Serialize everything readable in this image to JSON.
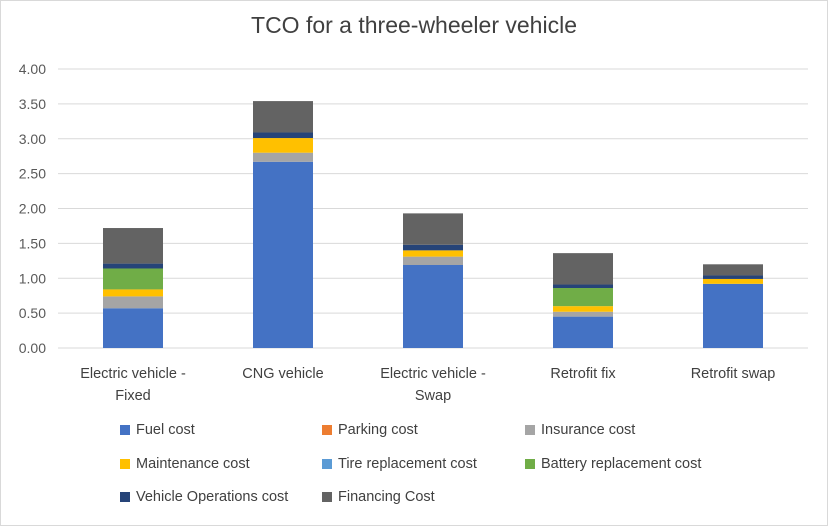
{
  "chart_data": {
    "type": "bar",
    "stacked": true,
    "title": "TCO for a three-wheeler vehicle",
    "xlabel": "",
    "ylabel": "",
    "ylim": [
      0,
      4
    ],
    "yticks": [
      "0.00",
      "0.50",
      "1.00",
      "1.50",
      "2.00",
      "2.50",
      "3.00",
      "3.50",
      "4.00"
    ],
    "grid": true,
    "legend_position": "bottom",
    "categories": [
      [
        "Electric vehicle -",
        "Fixed"
      ],
      [
        "CNG vehicle"
      ],
      [
        "Electric vehicle -",
        "Swap"
      ],
      [
        "Retrofit fix"
      ],
      [
        "Retrofit swap"
      ]
    ],
    "series": [
      {
        "name": "Fuel cost",
        "color": "#4472C4",
        "values": [
          0.57,
          2.67,
          1.19,
          0.45,
          0.92
        ]
      },
      {
        "name": "Parking cost",
        "color": "#ED7D31",
        "values": [
          0,
          0,
          0,
          0,
          0
        ]
      },
      {
        "name": "Insurance cost",
        "color": "#A5A5A5",
        "values": [
          0.17,
          0.13,
          0.12,
          0.07,
          0
        ]
      },
      {
        "name": "Maintenance cost",
        "color": "#FFC000",
        "values": [
          0.1,
          0.21,
          0.09,
          0.08,
          0.07
        ]
      },
      {
        "name": "Tire replacement cost",
        "color": "#5B9BD5",
        "values": [
          0,
          0,
          0,
          0,
          0
        ]
      },
      {
        "name": "Battery replacement cost",
        "color": "#70AD47",
        "values": [
          0.3,
          0,
          0,
          0.26,
          0
        ]
      },
      {
        "name": "Vehicle Operations cost",
        "color": "#264478",
        "values": [
          0.07,
          0.08,
          0.08,
          0.05,
          0.05
        ]
      },
      {
        "name": "Financing Cost",
        "color": "#636363",
        "values": [
          0.51,
          0.45,
          0.45,
          0.45,
          0.16
        ]
      }
    ]
  }
}
